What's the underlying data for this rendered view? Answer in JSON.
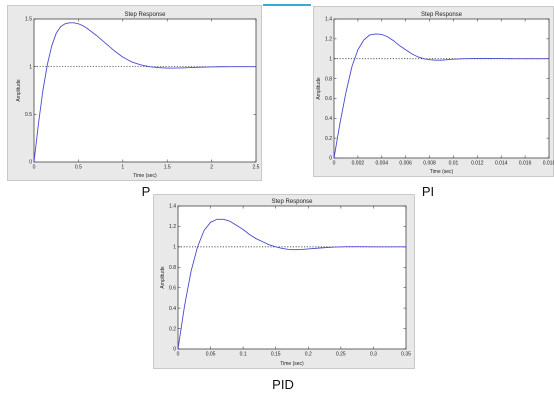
{
  "captions": {
    "p": "P",
    "pi": "PI",
    "pid": "PID"
  },
  "colors": {
    "line": "#4a4ad0",
    "axes_bg": "#ffffff",
    "figure_bg": "#e9e9e9",
    "accent": "#3ea6d8"
  },
  "chart_data": [
    {
      "id": "p",
      "type": "line",
      "title": "Step Response",
      "xlabel": "Time (sec)",
      "ylabel": "Amplitude",
      "xlim": [
        0,
        2.5
      ],
      "ylim": [
        0,
        1.5
      ],
      "xticks": [
        0,
        0.5,
        1,
        1.5,
        2,
        2.5
      ],
      "xticklabels": [
        "0",
        "0.5",
        "1",
        "1.5",
        "2",
        "2.5"
      ],
      "yticks": [
        0,
        0.5,
        1,
        1.5
      ],
      "yticklabels": [
        "0",
        "0.5",
        "1",
        "1.5"
      ],
      "reference": 1,
      "series": [
        {
          "x": [
            0,
            0.05,
            0.1,
            0.15,
            0.2,
            0.25,
            0.3,
            0.35,
            0.4,
            0.45,
            0.5,
            0.55,
            0.6,
            0.7,
            0.8,
            0.9,
            1.0,
            1.1,
            1.2,
            1.3,
            1.4,
            1.5,
            1.6,
            1.7,
            1.8,
            1.9,
            2.0,
            2.1,
            2.2,
            2.3,
            2.4,
            2.5
          ],
          "y": [
            0,
            0.4,
            0.75,
            1.02,
            1.22,
            1.35,
            1.42,
            1.45,
            1.46,
            1.46,
            1.45,
            1.43,
            1.4,
            1.33,
            1.25,
            1.17,
            1.1,
            1.05,
            1.02,
            1.0,
            0.99,
            0.985,
            0.985,
            0.988,
            0.992,
            0.995,
            0.997,
            0.999,
            1.0,
            1.0,
            1.0,
            1.0
          ]
        }
      ]
    },
    {
      "id": "pi",
      "type": "line",
      "title": "Step Response",
      "xlabel": "Time (sec)",
      "ylabel": "Amplitude",
      "xlim": [
        0,
        0.018
      ],
      "ylim": [
        0,
        1.4
      ],
      "xticks": [
        0,
        0.002,
        0.004,
        0.006,
        0.008,
        0.01,
        0.012,
        0.014,
        0.016,
        0.018
      ],
      "xticklabels": [
        "0",
        "0.002",
        "0.004",
        "0.006",
        "0.008",
        "0.01",
        "0.012",
        "0.014",
        "0.016",
        "0.018"
      ],
      "yticks": [
        0,
        0.2,
        0.4,
        0.6,
        0.8,
        1,
        1.2,
        1.4
      ],
      "yticklabels": [
        "0",
        "0.2",
        "0.4",
        "0.6",
        "0.8",
        "1",
        "1.2",
        "1.4"
      ],
      "reference": 1,
      "series": [
        {
          "x": [
            0,
            0.0005,
            0.001,
            0.0015,
            0.002,
            0.0025,
            0.003,
            0.0035,
            0.004,
            0.0045,
            0.005,
            0.0055,
            0.006,
            0.0065,
            0.007,
            0.0075,
            0.008,
            0.0085,
            0.009,
            0.0095,
            0.01,
            0.011,
            0.012,
            0.013,
            0.014,
            0.015,
            0.016,
            0.017,
            0.018
          ],
          "y": [
            0,
            0.35,
            0.66,
            0.92,
            1.09,
            1.19,
            1.24,
            1.25,
            1.245,
            1.22,
            1.18,
            1.13,
            1.09,
            1.05,
            1.02,
            1.0,
            0.99,
            0.985,
            0.985,
            0.99,
            0.995,
            1.0,
            1.003,
            1.003,
            1.002,
            1.0,
            1.0,
            1.0,
            1.0
          ]
        }
      ]
    },
    {
      "id": "pid",
      "type": "line",
      "title": "Step Response",
      "xlabel": "Time (sec)",
      "ylabel": "Amplitude",
      "xlim": [
        0,
        0.35
      ],
      "ylim": [
        0,
        1.4
      ],
      "xticks": [
        0,
        0.05,
        0.1,
        0.15,
        0.2,
        0.25,
        0.3,
        0.35
      ],
      "xticklabels": [
        "0",
        "0.05",
        "0.1",
        "0.15",
        "0.2",
        "0.25",
        "0.3",
        "0.35"
      ],
      "yticks": [
        0,
        0.2,
        0.4,
        0.6,
        0.8,
        1,
        1.2,
        1.4
      ],
      "yticklabels": [
        "0",
        "0.2",
        "0.4",
        "0.6",
        "0.8",
        "1",
        "1.2",
        "1.4"
      ],
      "reference": 1,
      "series": [
        {
          "x": [
            0,
            0.01,
            0.02,
            0.03,
            0.04,
            0.05,
            0.06,
            0.07,
            0.08,
            0.09,
            0.1,
            0.11,
            0.12,
            0.13,
            0.14,
            0.15,
            0.16,
            0.17,
            0.18,
            0.19,
            0.2,
            0.22,
            0.24,
            0.26,
            0.28,
            0.3,
            0.32,
            0.35
          ],
          "y": [
            0,
            0.42,
            0.76,
            1.0,
            1.16,
            1.24,
            1.27,
            1.27,
            1.25,
            1.21,
            1.17,
            1.12,
            1.08,
            1.05,
            1.02,
            1.0,
            0.985,
            0.975,
            0.972,
            0.975,
            0.98,
            0.99,
            0.998,
            1.002,
            1.002,
            1.0,
            1.0,
            1.0
          ]
        }
      ]
    }
  ]
}
